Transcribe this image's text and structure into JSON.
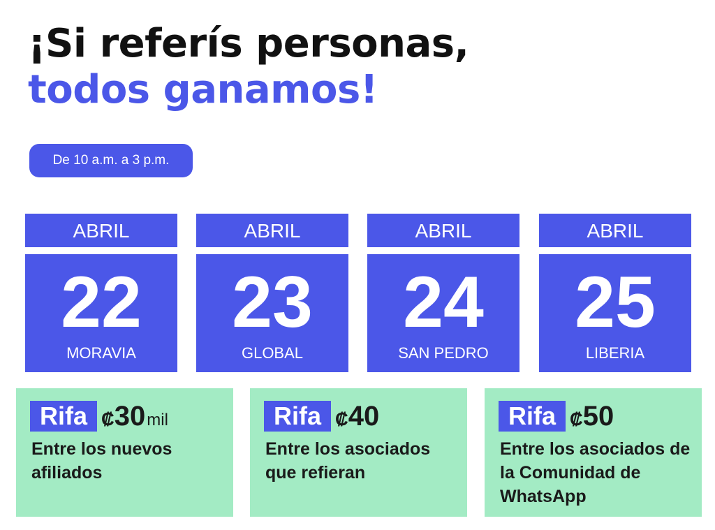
{
  "headline": {
    "line1": "¡Si referís personas,",
    "line2": "todos ganamos!"
  },
  "schedule": {
    "label": "De 10 a.m. a 3 p.m."
  },
  "calendar": [
    {
      "month": "ABRIL",
      "day": "22",
      "place": "MORAVIA"
    },
    {
      "month": "ABRIL",
      "day": "23",
      "place": "GLOBAL"
    },
    {
      "month": "ABRIL",
      "day": "24",
      "place": "SAN PEDRO"
    },
    {
      "month": "ABRIL",
      "day": "25",
      "place": "LIBERIA"
    }
  ],
  "raffles": [
    {
      "badge": "Rifa",
      "currency": "₡",
      "amount": "30",
      "unit": "mil",
      "description": "Entre los nuevos afiliados"
    },
    {
      "badge": "Rifa",
      "currency": "₡",
      "amount": "40",
      "unit": "",
      "description": "Entre los asociados que refieran"
    },
    {
      "badge": "Rifa",
      "currency": "₡",
      "amount": "50",
      "unit": "",
      "description": "Entre los asociados de la Comunidad de WhatsApp"
    }
  ],
  "colors": {
    "accent": "#4b57e8",
    "card_green": "#a3ebc4",
    "text_dark": "#111111"
  }
}
